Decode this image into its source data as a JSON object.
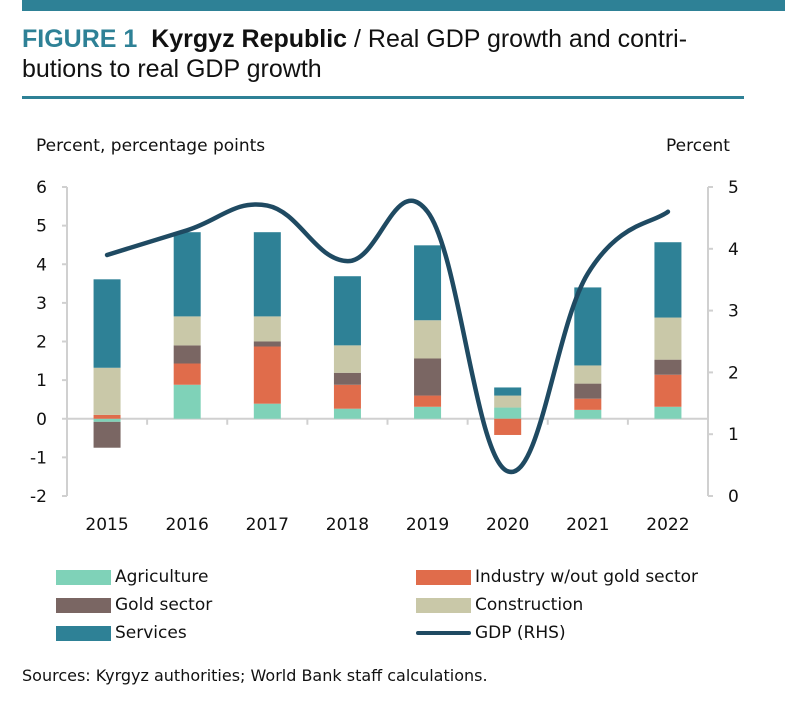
{
  "header": {
    "figure_label": "FIGURE 1",
    "country": "Kyrgyz Republic",
    "separator": " / ",
    "title_rest": "Real GDP growth and contri-butions to real GDP growth"
  },
  "colors": {
    "accent": "#2e8196",
    "agriculture": "#7fd2b8",
    "industry": "#e06c4b",
    "gold": "#7a6663",
    "construction": "#c9c8a8",
    "services": "#2e8196",
    "gdp": "#1f4a62",
    "axis": "#d0d0d0"
  },
  "chart_data": {
    "type": "bar",
    "stacked": true,
    "title": "Real GDP growth and contributions to real GDP growth",
    "ylabel": "Percent, percentage points",
    "y2label": "Percent",
    "ylim": [
      -2,
      6
    ],
    "y2lim": [
      0,
      5
    ],
    "yticks": [
      6,
      5,
      4,
      3,
      2,
      1,
      0,
      -1,
      -2
    ],
    "y2ticks": [
      5,
      4,
      3,
      2,
      1,
      0
    ],
    "categories": [
      "2015",
      "2016",
      "2017",
      "2018",
      "2019",
      "2020",
      "2021",
      "2022"
    ],
    "series": [
      {
        "name": "Agriculture",
        "key": "agriculture",
        "values": [
          -0.08,
          0.88,
          0.39,
          0.26,
          0.31,
          0.29,
          0.23,
          0.31
        ]
      },
      {
        "name": "Industry w/out gold sector",
        "key": "industry",
        "values": [
          0.1,
          0.55,
          1.48,
          0.62,
          0.29,
          -0.42,
          0.29,
          0.83
        ]
      },
      {
        "name": "Gold sector",
        "key": "gold",
        "values": [
          -0.67,
          0.47,
          0.13,
          0.31,
          0.96,
          0.0,
          0.39,
          0.39
        ]
      },
      {
        "name": "Construction",
        "key": "construction",
        "values": [
          1.22,
          0.75,
          0.65,
          0.71,
          0.99,
          0.31,
          0.47,
          1.09
        ]
      },
      {
        "name": "Services",
        "key": "services",
        "values": [
          2.29,
          2.18,
          2.18,
          1.79,
          1.94,
          0.21,
          2.02,
          1.95
        ]
      }
    ],
    "line_series": {
      "name": "GDP (RHS)",
      "key": "gdp",
      "axis": "right",
      "values": [
        3.9,
        4.3,
        4.7,
        3.8,
        4.6,
        0.4,
        3.6,
        4.6
      ]
    },
    "grid": false,
    "legend": "bottom"
  },
  "legend": [
    {
      "label": "Agriculture",
      "key": "agriculture",
      "type": "bar"
    },
    {
      "label": "Industry w/out gold sector",
      "key": "industry",
      "type": "bar"
    },
    {
      "label": "Gold sector",
      "key": "gold",
      "type": "bar"
    },
    {
      "label": "Construction",
      "key": "construction",
      "type": "bar"
    },
    {
      "label": "Services",
      "key": "services",
      "type": "bar"
    },
    {
      "label": "GDP (RHS)",
      "key": "gdp",
      "type": "line"
    }
  ],
  "source": "Sources: Kyrgyz authorities; World Bank staff calculations."
}
